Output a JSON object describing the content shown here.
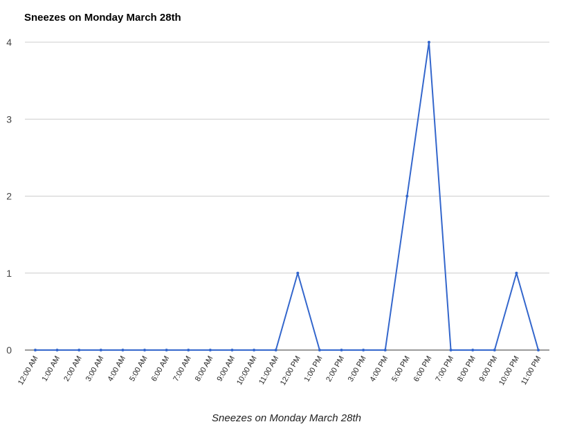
{
  "chart_data": {
    "type": "line",
    "title": "Sneezes on Monday March 28th",
    "xlabel": "Sneezes on Monday March 28th",
    "ylabel": "",
    "ylim": [
      0,
      4
    ],
    "yticks": [
      0,
      1,
      2,
      3,
      4
    ],
    "grid": true,
    "legend": "none",
    "categories": [
      "12:00 AM",
      "1:00 AM",
      "2:00 AM",
      "3:00 AM",
      "4:00 AM",
      "5:00 AM",
      "6:00 AM",
      "7:00 AM",
      "8:00 AM",
      "9:00 AM",
      "10:00 AM",
      "11:00 AM",
      "12:00 PM",
      "1:00 PM",
      "2:00 PM",
      "3:00 PM",
      "4:00 PM",
      "5:00 PM",
      "6:00 PM",
      "7:00 PM",
      "8:00 PM",
      "9:00 PM",
      "10:00 PM",
      "11:00 PM"
    ],
    "series": [
      {
        "color": "#3366cc",
        "values": [
          0,
          0,
          0,
          0,
          0,
          0,
          0,
          0,
          0,
          0,
          0,
          0,
          1,
          0,
          0,
          0,
          0,
          2,
          4,
          0,
          0,
          0,
          1,
          0
        ]
      }
    ],
    "colors": {
      "grid": "#cccccc",
      "axis": "#333333"
    }
  }
}
